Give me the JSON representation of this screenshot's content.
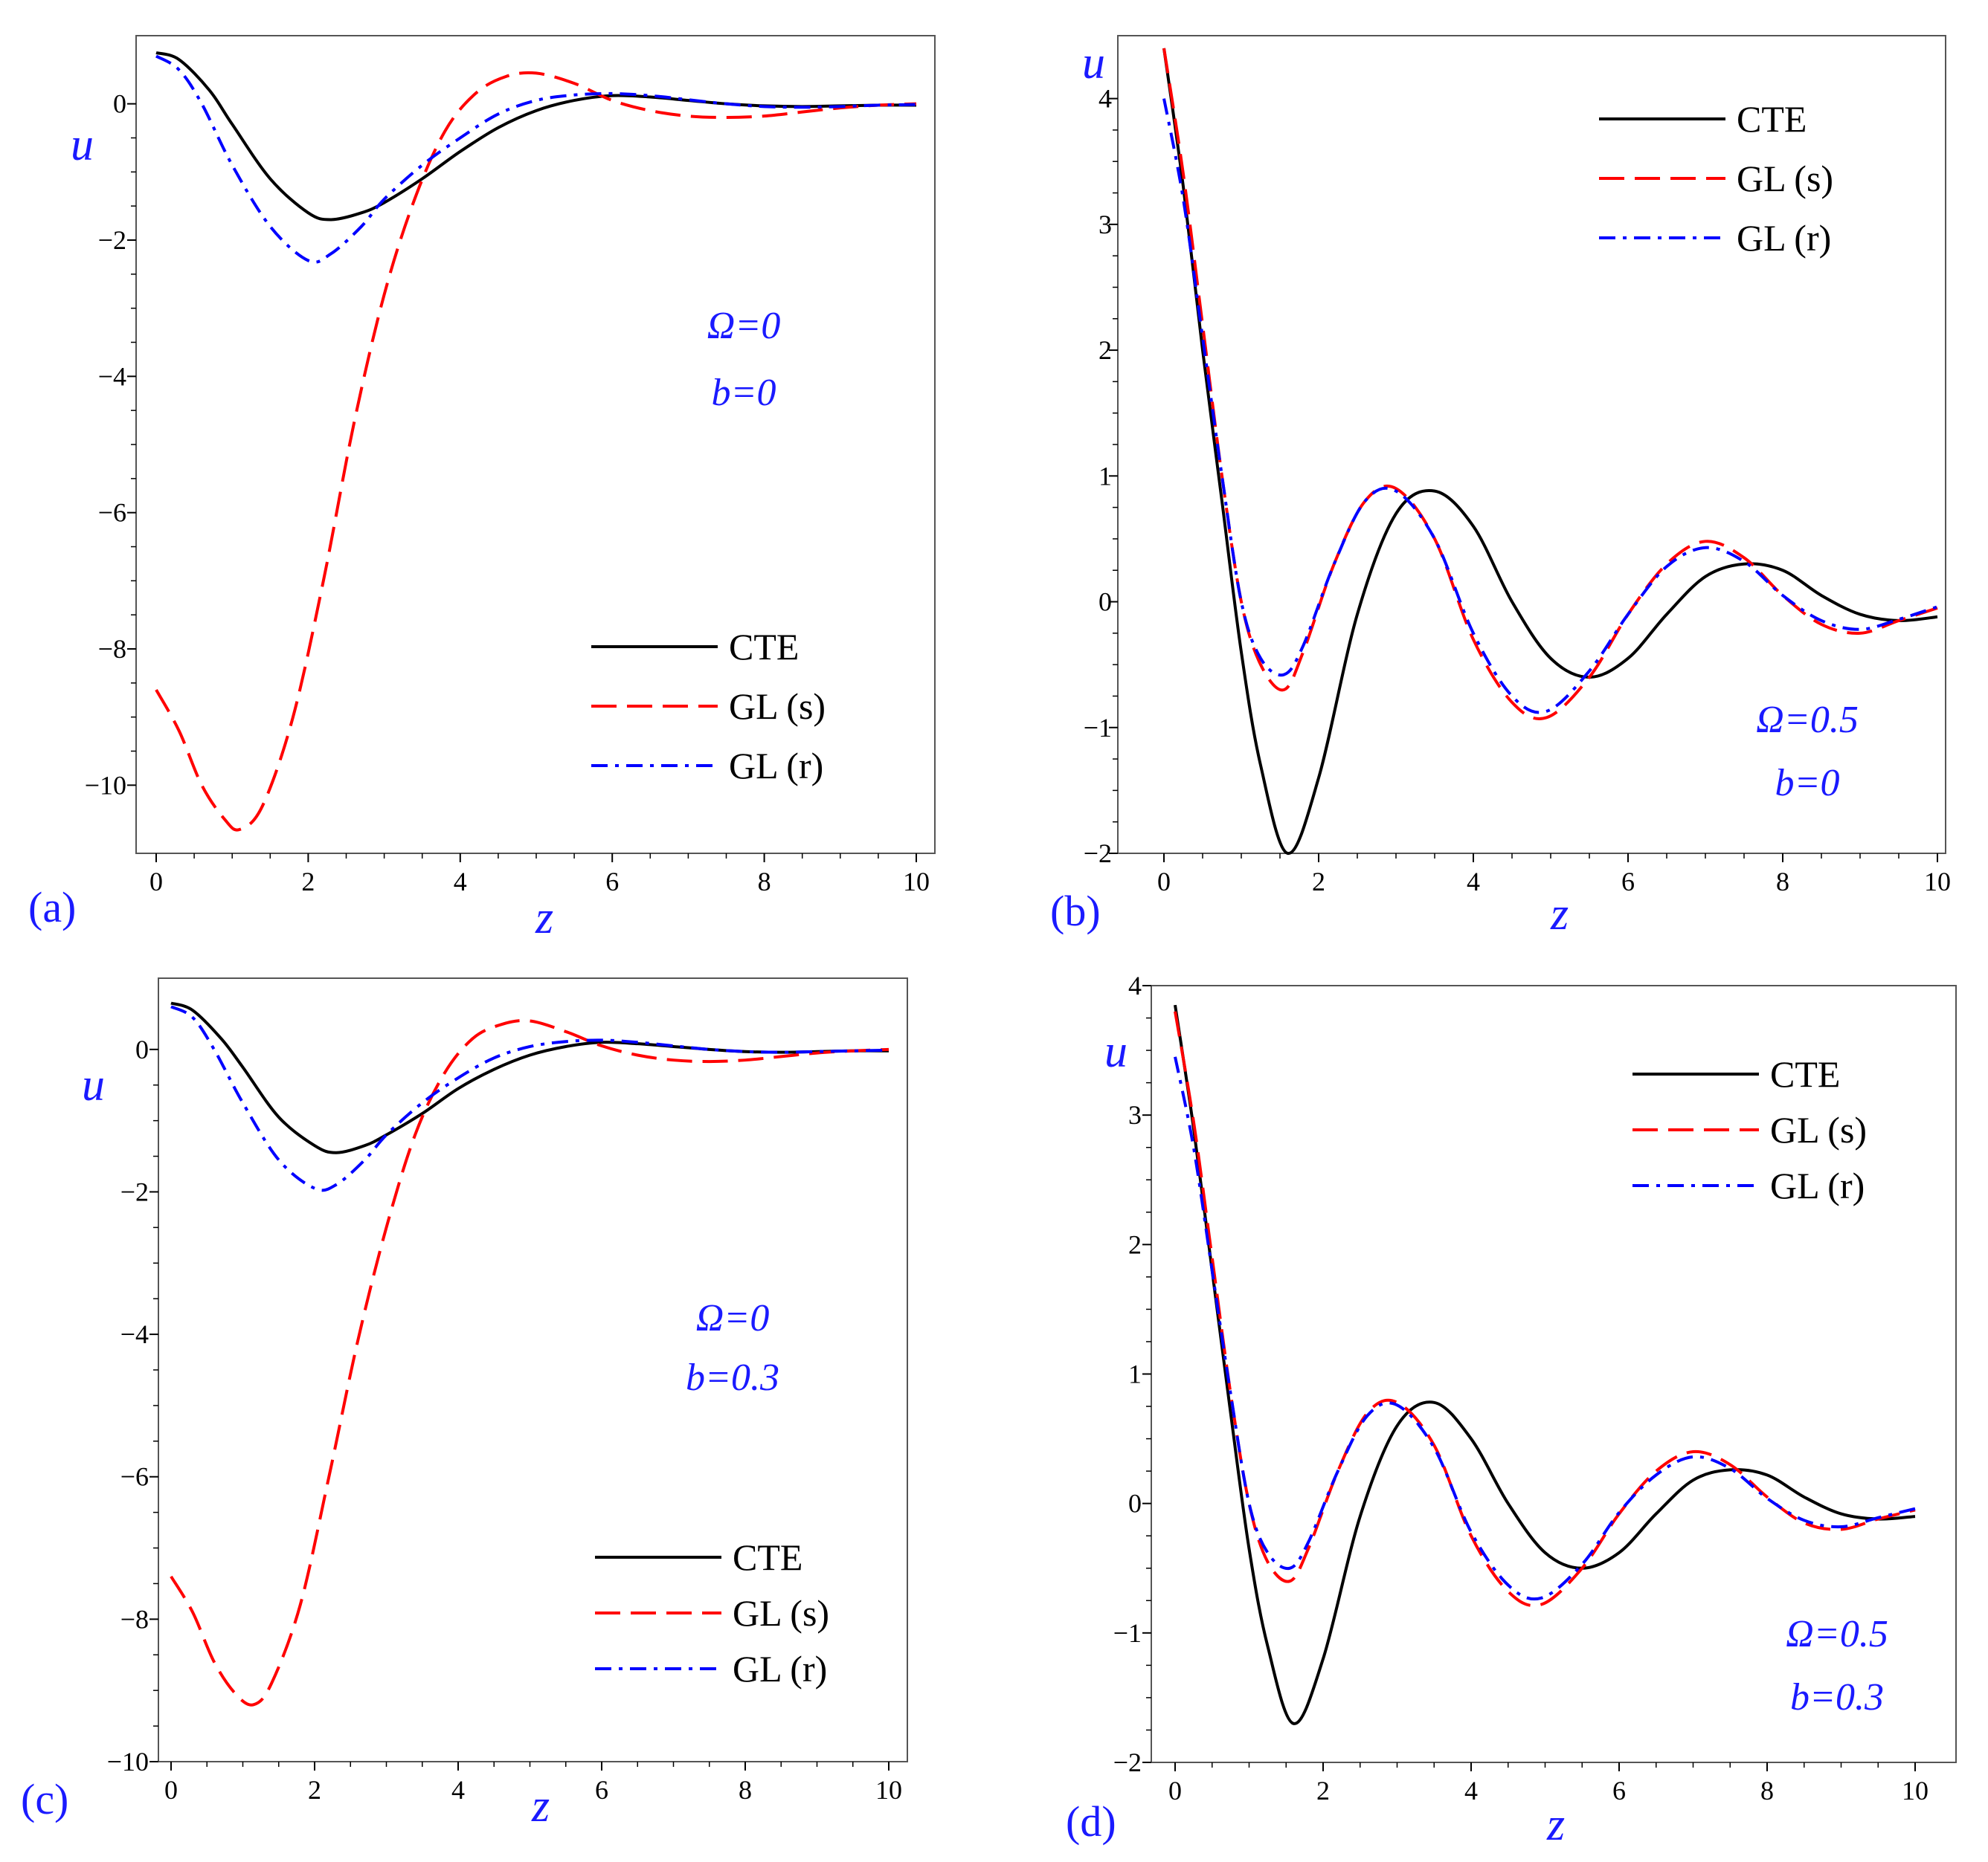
{
  "chart_data": [
    {
      "type": "line",
      "panel_label": "(a)",
      "xlabel": "z",
      "ylabel": "u",
      "xlim": [
        0,
        10
      ],
      "ylim": [
        -11,
        1
      ],
      "xticks": [
        "0",
        "2",
        "4",
        "6",
        "8",
        "10"
      ],
      "yticks": [
        "0",
        "-2",
        "-4",
        "-6",
        "-8",
        "-10"
      ],
      "annotation": [
        "Ω=0",
        "b=0"
      ],
      "legend": "lower-right",
      "series": [
        {
          "name": "CTE",
          "color": "#000000",
          "dash": "solid",
          "x": [
            0,
            0.3,
            0.7,
            1.0,
            1.5,
            2.0,
            2.3,
            2.7,
            3.0,
            3.5,
            4.0,
            4.5,
            5.0,
            5.5,
            6.0,
            6.5,
            7.0,
            7.5,
            8.0,
            8.5,
            9.0,
            9.5,
            10
          ],
          "y": [
            0.75,
            0.65,
            0.2,
            -0.3,
            -1.1,
            -1.6,
            -1.7,
            -1.6,
            -1.45,
            -1.1,
            -0.7,
            -0.35,
            -0.1,
            0.05,
            0.12,
            0.1,
            0.05,
            0,
            -0.03,
            -0.04,
            -0.03,
            -0.02,
            -0.02
          ]
        },
        {
          "name": "GL (s)",
          "color": "#ff0000",
          "dash": "dash",
          "x": [
            0,
            0.3,
            0.6,
            0.9,
            1.1,
            1.4,
            1.8,
            2.2,
            2.6,
            3.0,
            3.4,
            3.8,
            4.2,
            4.6,
            5.0,
            5.5,
            6.0,
            6.5,
            7.0,
            7.5,
            8.0,
            8.5,
            9.0,
            9.5,
            10
          ],
          "y": [
            -8.6,
            -9.2,
            -10.0,
            -10.5,
            -10.65,
            -10.3,
            -9.0,
            -7.0,
            -4.7,
            -2.8,
            -1.4,
            -0.4,
            0.15,
            0.4,
            0.45,
            0.3,
            0.05,
            -0.1,
            -0.18,
            -0.2,
            -0.18,
            -0.12,
            -0.06,
            -0.02,
            0
          ]
        },
        {
          "name": "GL (r)",
          "color": "#0000ff",
          "dash": "dashdot",
          "x": [
            0,
            0.3,
            0.6,
            1.0,
            1.5,
            2.0,
            2.3,
            2.7,
            3.0,
            3.5,
            4.0,
            4.5,
            5.0,
            5.5,
            6.0,
            6.5,
            7.0,
            7.5,
            8.0,
            8.5,
            9.0,
            9.5,
            10
          ],
          "y": [
            0.7,
            0.5,
            0.0,
            -0.9,
            -1.8,
            -2.3,
            -2.2,
            -1.8,
            -1.4,
            -0.9,
            -0.5,
            -0.15,
            0.05,
            0.13,
            0.15,
            0.12,
            0.06,
            0,
            -0.04,
            -0.05,
            -0.04,
            -0.02,
            -0.01
          ]
        }
      ]
    },
    {
      "type": "line",
      "panel_label": "(b)",
      "xlabel": "z",
      "ylabel": "u",
      "xlim": [
        0,
        10
      ],
      "ylim": [
        -2,
        4.5
      ],
      "xticks": [
        "0",
        "2",
        "4",
        "6",
        "8",
        "10"
      ],
      "yticks": [
        "4",
        "3",
        "2",
        "1",
        "0",
        "-1",
        "-2"
      ],
      "annotation": [
        "Ω=0.5",
        "b=0"
      ],
      "legend": "upper-right",
      "series": [
        {
          "name": "CTE",
          "color": "#000000",
          "dash": "solid",
          "x": [
            0,
            0.25,
            0.5,
            0.75,
            1.0,
            1.25,
            1.6,
            2.0,
            2.5,
            3.0,
            3.5,
            4.0,
            4.5,
            5.0,
            5.5,
            6.0,
            6.5,
            7.0,
            7.5,
            8.0,
            8.5,
            9.0,
            9.5,
            10
          ],
          "y": [
            4.4,
            3.3,
            2.0,
            0.8,
            -0.4,
            -1.3,
            -2.0,
            -1.4,
            -0.1,
            0.7,
            0.88,
            0.6,
            0.0,
            -0.45,
            -0.6,
            -0.45,
            -0.1,
            0.2,
            0.3,
            0.25,
            0.05,
            -0.1,
            -0.15,
            -0.12
          ]
        },
        {
          "name": "GL (s)",
          "color": "#ff0000",
          "dash": "dash",
          "x": [
            0,
            0.25,
            0.5,
            0.75,
            1.0,
            1.25,
            1.55,
            1.8,
            2.2,
            2.6,
            3.0,
            3.5,
            4.0,
            4.5,
            4.95,
            5.5,
            6.0,
            6.5,
            7.0,
            7.5,
            8.0,
            8.5,
            9.0,
            9.5,
            10
          ],
          "y": [
            4.4,
            3.4,
            2.2,
            1.0,
            0.0,
            -0.5,
            -0.7,
            -0.4,
            0.3,
            0.8,
            0.9,
            0.5,
            -0.3,
            -0.8,
            -0.92,
            -0.6,
            -0.1,
            0.3,
            0.48,
            0.35,
            0.05,
            -0.18,
            -0.25,
            -0.15,
            -0.05
          ]
        },
        {
          "name": "GL (r)",
          "color": "#0000ff",
          "dash": "dashdot",
          "x": [
            0,
            0.25,
            0.5,
            0.75,
            1.0,
            1.25,
            1.55,
            1.8,
            2.2,
            2.6,
            3.0,
            3.5,
            4.0,
            4.5,
            4.95,
            5.5,
            6.0,
            6.5,
            7.0,
            7.5,
            8.0,
            8.5,
            9.0,
            9.5,
            10
          ],
          "y": [
            4.0,
            3.2,
            2.1,
            1.0,
            0.0,
            -0.45,
            -0.58,
            -0.35,
            0.3,
            0.8,
            0.88,
            0.5,
            -0.25,
            -0.75,
            -0.87,
            -0.55,
            -0.1,
            0.28,
            0.43,
            0.32,
            0.05,
            -0.15,
            -0.22,
            -0.14,
            -0.04
          ]
        }
      ]
    },
    {
      "type": "line",
      "panel_label": "(c)",
      "xlabel": "z",
      "ylabel": "u",
      "xlim": [
        0,
        10
      ],
      "ylim": [
        -10,
        1
      ],
      "xticks": [
        "0",
        "2",
        "4",
        "6",
        "8",
        "10"
      ],
      "yticks": [
        "0",
        "-2",
        "-4",
        "-6",
        "-8",
        "-10"
      ],
      "annotation": [
        "Ω=0",
        "b=0.3"
      ],
      "legend": "lower-right",
      "series": [
        {
          "name": "CTE",
          "color": "#000000",
          "dash": "solid",
          "x": [
            0,
            0.3,
            0.7,
            1.0,
            1.5,
            2.0,
            2.3,
            2.7,
            3.0,
            3.5,
            4.0,
            4.5,
            5.0,
            5.5,
            6.0,
            6.5,
            7.0,
            7.5,
            8.0,
            8.5,
            9.0,
            9.5,
            10
          ],
          "y": [
            0.65,
            0.55,
            0.15,
            -0.25,
            -0.95,
            -1.35,
            -1.45,
            -1.35,
            -1.2,
            -0.9,
            -0.55,
            -0.28,
            -0.08,
            0.04,
            0.1,
            0.08,
            0.04,
            0,
            -0.03,
            -0.04,
            -0.03,
            -0.02,
            -0.02
          ]
        },
        {
          "name": "GL (s)",
          "color": "#ff0000",
          "dash": "dash",
          "x": [
            0,
            0.3,
            0.6,
            0.9,
            1.15,
            1.4,
            1.8,
            2.2,
            2.6,
            3.0,
            3.4,
            3.8,
            4.2,
            4.6,
            5.0,
            5.5,
            6.0,
            6.5,
            7.0,
            7.5,
            8.0,
            8.5,
            9.0,
            9.5,
            10
          ],
          "y": [
            -7.4,
            -7.9,
            -8.6,
            -9.05,
            -9.2,
            -8.9,
            -7.8,
            -6.0,
            -4.1,
            -2.5,
            -1.2,
            -0.35,
            0.15,
            0.35,
            0.4,
            0.25,
            0.05,
            -0.08,
            -0.15,
            -0.17,
            -0.15,
            -0.1,
            -0.05,
            -0.02,
            0
          ]
        },
        {
          "name": "GL (r)",
          "color": "#0000ff",
          "dash": "dashdot",
          "x": [
            0,
            0.3,
            0.6,
            1.0,
            1.5,
            2.0,
            2.3,
            2.7,
            3.0,
            3.5,
            4.0,
            4.5,
            5.0,
            5.5,
            6.0,
            6.5,
            7.0,
            7.5,
            8.0,
            8.5,
            9.0,
            9.5,
            10
          ],
          "y": [
            0.6,
            0.45,
            0.0,
            -0.75,
            -1.55,
            -1.95,
            -1.9,
            -1.55,
            -1.2,
            -0.75,
            -0.4,
            -0.12,
            0.04,
            0.11,
            0.13,
            0.1,
            0.05,
            0,
            -0.03,
            -0.04,
            -0.03,
            -0.02,
            -0.01
          ]
        }
      ]
    },
    {
      "type": "line",
      "panel_label": "(d)",
      "xlabel": "z",
      "ylabel": "u",
      "xlim": [
        0,
        10
      ],
      "ylim": [
        -2,
        4
      ],
      "xticks": [
        "0",
        "2",
        "4",
        "6",
        "8",
        "10"
      ],
      "yticks": [
        "4",
        "3",
        "2",
        "1",
        "0",
        "-1",
        "-2"
      ],
      "annotation": [
        "Ω=0.5",
        "b=0.3"
      ],
      "legend": "upper-right",
      "series": [
        {
          "name": "CTE",
          "color": "#000000",
          "dash": "solid",
          "x": [
            0,
            0.25,
            0.5,
            0.75,
            1.0,
            1.25,
            1.6,
            2.0,
            2.5,
            3.0,
            3.5,
            4.0,
            4.5,
            5.0,
            5.5,
            6.0,
            6.5,
            7.0,
            7.5,
            8.0,
            8.5,
            9.0,
            9.5,
            10
          ],
          "y": [
            3.85,
            2.9,
            1.8,
            0.7,
            -0.35,
            -1.1,
            -1.7,
            -1.2,
            -0.1,
            0.6,
            0.78,
            0.5,
            0.0,
            -0.38,
            -0.5,
            -0.38,
            -0.08,
            0.18,
            0.26,
            0.22,
            0.05,
            -0.08,
            -0.12,
            -0.1
          ]
        },
        {
          "name": "GL (s)",
          "color": "#ff0000",
          "dash": "dash",
          "x": [
            0,
            0.25,
            0.5,
            0.75,
            1.0,
            1.25,
            1.55,
            1.8,
            2.2,
            2.6,
            3.0,
            3.5,
            4.0,
            4.5,
            4.95,
            5.5,
            6.0,
            6.5,
            7.0,
            7.5,
            8.0,
            8.5,
            9.0,
            9.5,
            10
          ],
          "y": [
            3.8,
            2.95,
            1.9,
            0.85,
            0.0,
            -0.45,
            -0.6,
            -0.35,
            0.25,
            0.7,
            0.78,
            0.45,
            -0.25,
            -0.68,
            -0.78,
            -0.5,
            -0.08,
            0.25,
            0.4,
            0.3,
            0.05,
            -0.15,
            -0.2,
            -0.12,
            -0.05
          ]
        },
        {
          "name": "GL (r)",
          "color": "#0000ff",
          "dash": "dashdot",
          "x": [
            0,
            0.25,
            0.5,
            0.75,
            1.0,
            1.25,
            1.55,
            1.8,
            2.2,
            2.6,
            3.0,
            3.5,
            4.0,
            4.5,
            4.95,
            5.5,
            6.0,
            6.5,
            7.0,
            7.5,
            8.0,
            8.5,
            9.0,
            9.5,
            10
          ],
          "y": [
            3.45,
            2.75,
            1.8,
            0.85,
            0.0,
            -0.38,
            -0.5,
            -0.3,
            0.25,
            0.68,
            0.76,
            0.43,
            -0.22,
            -0.63,
            -0.73,
            -0.47,
            -0.07,
            0.22,
            0.36,
            0.27,
            0.04,
            -0.13,
            -0.18,
            -0.11,
            -0.04
          ]
        }
      ]
    }
  ]
}
